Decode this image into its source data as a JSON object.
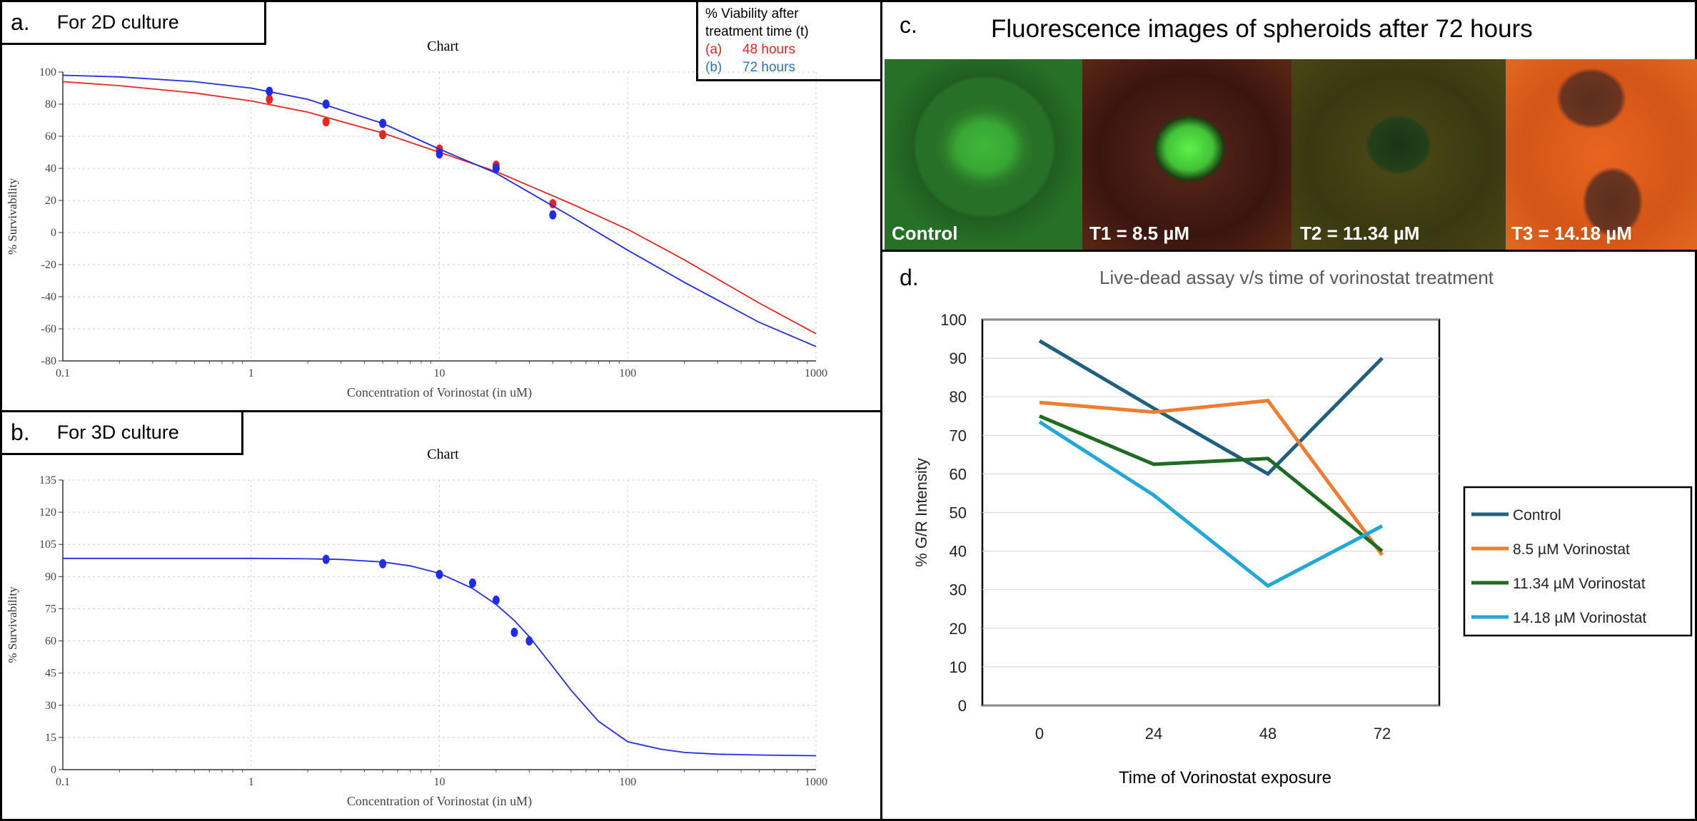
{
  "panel_a": {
    "letter": "a.",
    "tag": "For 2D culture",
    "legend": {
      "title_line1": "% Viability after",
      "title_line2": "treatment time (t)",
      "item_a_key": "(a)",
      "item_a_label": "48 hours",
      "item_b_key": "(b)",
      "item_b_label": "72 hours"
    }
  },
  "panel_b": {
    "letter": "b.",
    "tag": "For 3D culture"
  },
  "panel_c": {
    "letter": "c.",
    "title": "Fluorescence images of spheroids after 72 hours",
    "captions": [
      "Control",
      "T1 = 8.5 µM",
      "T2 = 11.34 µM",
      "T3 = 14.18  µM"
    ]
  },
  "panel_d": {
    "letter": "d."
  },
  "chart_data": [
    {
      "type": "scatter",
      "title": "Chart",
      "xlabel": "Concentration of Vorinostat (in uM)",
      "ylabel": "% Survivability",
      "xscale": "log",
      "xlim": [
        0.1,
        1000
      ],
      "ylim": [
        -80,
        100
      ],
      "xticks": [
        "0.1",
        "1",
        "10",
        "100",
        "1000"
      ],
      "yticks": [
        "-80",
        "-60",
        "-40",
        "-20",
        "0",
        "20",
        "40",
        "60",
        "80",
        "100"
      ],
      "grid": true,
      "series": [
        {
          "name": "48 hours",
          "color": "#e8261f",
          "x": [
            1.25,
            2.5,
            5,
            10,
            20,
            40
          ],
          "y": [
            83,
            69,
            61,
            52,
            42,
            18
          ],
          "fit_x": [
            0.1,
            0.2,
            0.5,
            1,
            2,
            5,
            10,
            20,
            50,
            100,
            200,
            500,
            1000
          ],
          "fit_y": [
            94,
            91.5,
            87,
            82,
            75,
            62,
            50,
            38,
            18,
            2,
            -17,
            -44,
            -63
          ]
        },
        {
          "name": "72 hours",
          "color": "#1f2be8",
          "x": [
            1.25,
            2.5,
            5,
            10,
            20,
            40
          ],
          "y": [
            88,
            80,
            68,
            49,
            40,
            11
          ],
          "fit_x": [
            0.1,
            0.2,
            0.5,
            1,
            2,
            5,
            10,
            20,
            50,
            100,
            200,
            500,
            1000
          ],
          "fit_y": [
            98,
            97,
            94,
            90,
            83,
            68,
            52,
            37,
            10,
            -11,
            -31,
            -56,
            -71
          ]
        }
      ]
    },
    {
      "type": "scatter",
      "title": "Chart",
      "xlabel": "Concentration of Vorinostat (in uM)",
      "ylabel": "% Survivability",
      "xscale": "log",
      "xlim": [
        0.1,
        1000
      ],
      "ylim": [
        0,
        135
      ],
      "xticks": [
        "0.1",
        "1",
        "10",
        "100",
        "1000"
      ],
      "yticks": [
        "0",
        "15",
        "30",
        "45",
        "60",
        "75",
        "90",
        "105",
        "120",
        "135"
      ],
      "grid": true,
      "series": [
        {
          "name": "3D",
          "color": "#1f2be8",
          "x": [
            2.5,
            5,
            10,
            15,
            20,
            25,
            30
          ],
          "y": [
            98,
            96,
            91,
            87,
            79,
            64,
            60
          ],
          "fit_x": [
            0.1,
            1,
            2,
            3,
            5,
            7,
            10,
            15,
            20,
            25,
            30,
            40,
            50,
            70,
            100,
            150,
            200,
            300,
            500,
            1000
          ],
          "fit_y": [
            98.5,
            98.5,
            98.3,
            98,
            96.8,
            95,
            91.5,
            84.5,
            77,
            69.5,
            62,
            48,
            37,
            22.5,
            13,
            9.5,
            8,
            7.2,
            6.8,
            6.5
          ]
        }
      ]
    },
    {
      "type": "line",
      "title": "Live-dead assay v/s time of vorinostat treatment",
      "xlabel": "Time of Vorinostat exposure",
      "ylabel": "% G/R Intensity",
      "categories": [
        "0",
        "24",
        "48",
        "72"
      ],
      "ylim": [
        0,
        100
      ],
      "yticks": [
        "0",
        "10",
        "20",
        "30",
        "40",
        "50",
        "60",
        "70",
        "80",
        "90",
        "100"
      ],
      "grid": true,
      "legend_position": "right",
      "series": [
        {
          "name": "Control",
          "color": "#1f5f7f",
          "values": [
            94.5,
            77,
            60,
            90
          ]
        },
        {
          "name": "8.5 µM Vorinostat",
          "color": "#ed7d31",
          "values": [
            78.5,
            76,
            79,
            39
          ]
        },
        {
          "name": "11.34  µM Vorinostat",
          "color": "#1e6b22",
          "values": [
            75,
            62.5,
            64,
            40
          ]
        },
        {
          "name": "14.18  µM Vorinostat",
          "color": "#21a8d8",
          "values": [
            73.5,
            54.5,
            31,
            46.5
          ]
        }
      ]
    }
  ]
}
